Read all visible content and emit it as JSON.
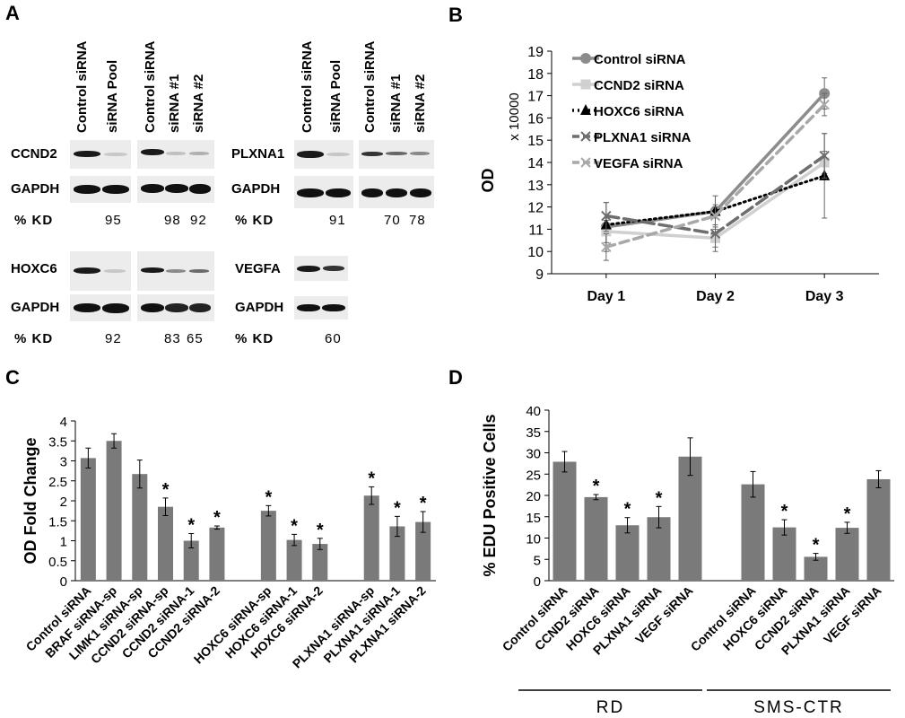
{
  "panels": {
    "a": "A",
    "b": "B",
    "c": "C",
    "d": "D"
  },
  "panel_a": {
    "lanes_pool": [
      "Control siRNA",
      "siRNA Pool"
    ],
    "lanes_ind": [
      "Control siRNA",
      "siRNA #1",
      "siRNA #2"
    ],
    "genes": {
      "ccnd2": "CCND2",
      "plxna1": "PLXNA1",
      "hoxc6": "HOXC6",
      "vegfa": "VEGFA",
      "gapdh": "GAPDH"
    },
    "kd_label": "% KD",
    "kd": {
      "ccnd2_pool": "95",
      "ccnd2_1": "98",
      "ccnd2_2": "92",
      "plxna1_pool": "91",
      "plxna1_1": "70",
      "plxna1_2": "78",
      "hoxc6_pool": "92",
      "hoxc6_1": "83",
      "hoxc6_2": "65",
      "vegfa_pool": "60"
    }
  },
  "chart_data": [
    {
      "type": "line",
      "panel": "B",
      "x": [
        "Day 1",
        "Day 2",
        "Day 3"
      ],
      "ylabel": "OD",
      "y_multiplier": "x 10000",
      "ylim": [
        9,
        19
      ],
      "yticks": [
        "9",
        "10",
        "11",
        "12",
        "13",
        "14",
        "15",
        "16",
        "17",
        "18",
        "19"
      ],
      "legend_position": "top-left",
      "series": [
        {
          "name": "Control siRNA",
          "values": [
            11.1,
            11.8,
            17.1
          ],
          "err": [
            1.1,
            0.7,
            0.7
          ],
          "color": "#8c8c8c",
          "dash": "",
          "marker": "circle"
        },
        {
          "name": "CCND2 siRNA",
          "values": [
            10.9,
            10.6,
            14.0
          ],
          "err": [
            0.5,
            0.4,
            0.5
          ],
          "color": "#d0d0d0",
          "dash": "",
          "marker": "square"
        },
        {
          "name": "HOXC6 siRNA",
          "values": [
            11.2,
            11.8,
            13.4
          ],
          "err": [
            0.3,
            0.3,
            1.9
          ],
          "color": "#000000",
          "dash": "2,4",
          "marker": "triangle"
        },
        {
          "name": "PLXNA1 siRNA",
          "values": [
            11.6,
            10.8,
            14.3
          ],
          "err": [
            0.6,
            0.8,
            1.0
          ],
          "color": "#6e6e6e",
          "dash": "14,6",
          "marker": "x"
        },
        {
          "name": "VEGFA siRNA",
          "values": [
            10.2,
            11.6,
            16.6
          ],
          "err": [
            0.6,
            0.4,
            0.5
          ],
          "color": "#a8a8a8",
          "dash": "10,6",
          "marker": "x"
        }
      ]
    },
    {
      "type": "bar",
      "panel": "C",
      "ylabel": "OD Fold Change",
      "ylim": [
        0,
        4
      ],
      "yticks": [
        "0",
        "0.5",
        "1",
        "1.5",
        "2",
        "2.5",
        "3",
        "3.5",
        "4"
      ],
      "categories": [
        "Control siRNA",
        "BRAF siRNA-sp",
        "LIMK1 siRNA-sp",
        "CCND2 siRNA-sp",
        "CCND2 siRNA-1",
        "CCND2 siRNA-2",
        "HOXC6 siRNA-sp",
        "HOXC6 siRNA-1",
        "HOXC6 siRNA-2",
        "PLXNA1 siRNA-sp",
        "PLXNA1 siRNA-1",
        "PLXNA1 siRNA-2"
      ],
      "slots": [
        0,
        1,
        2,
        3,
        4,
        5,
        7,
        8,
        9,
        11,
        12,
        13
      ],
      "values": [
        3.07,
        3.5,
        2.67,
        1.85,
        1.0,
        1.33,
        1.75,
        1.02,
        0.92,
        2.13,
        1.36,
        1.47
      ],
      "err": [
        0.25,
        0.18,
        0.35,
        0.22,
        0.18,
        0.04,
        0.13,
        0.14,
        0.14,
        0.22,
        0.25,
        0.26
      ],
      "significant": [
        false,
        false,
        false,
        true,
        true,
        true,
        true,
        true,
        true,
        true,
        true,
        true
      ],
      "marker": "*"
    },
    {
      "type": "bar",
      "panel": "D",
      "ylabel": "% EDU Positive Cells",
      "ylim": [
        0,
        40
      ],
      "yticks": [
        "0",
        "5",
        "10",
        "15",
        "20",
        "25",
        "30",
        "35",
        "40"
      ],
      "categories": [
        "Control siRNA",
        "CCND2 siRNA",
        "HOXC6 siRNA",
        "PLXNA1 siRNA",
        "VEGF siRNA",
        "Control siRNA",
        "HOXC6 siRNA",
        "CCND2 siRNA",
        "PLXNA1 siRNA",
        "VEGF siRNA"
      ],
      "slots": [
        0,
        1,
        2,
        3,
        4,
        6,
        7,
        8,
        9,
        10
      ],
      "values": [
        27.9,
        19.6,
        13.0,
        14.9,
        29.1,
        22.6,
        12.5,
        5.6,
        12.4,
        23.8
      ],
      "err": [
        2.4,
        0.6,
        1.8,
        2.5,
        4.4,
        3.0,
        1.8,
        0.8,
        1.3,
        2.0
      ],
      "significant": [
        false,
        true,
        true,
        true,
        false,
        false,
        true,
        true,
        true,
        false
      ],
      "marker": "*",
      "groups": [
        {
          "name": "RD",
          "from": 0,
          "to": 4
        },
        {
          "name": "SMS-CTR",
          "from": 6,
          "to": 10
        }
      ]
    }
  ]
}
